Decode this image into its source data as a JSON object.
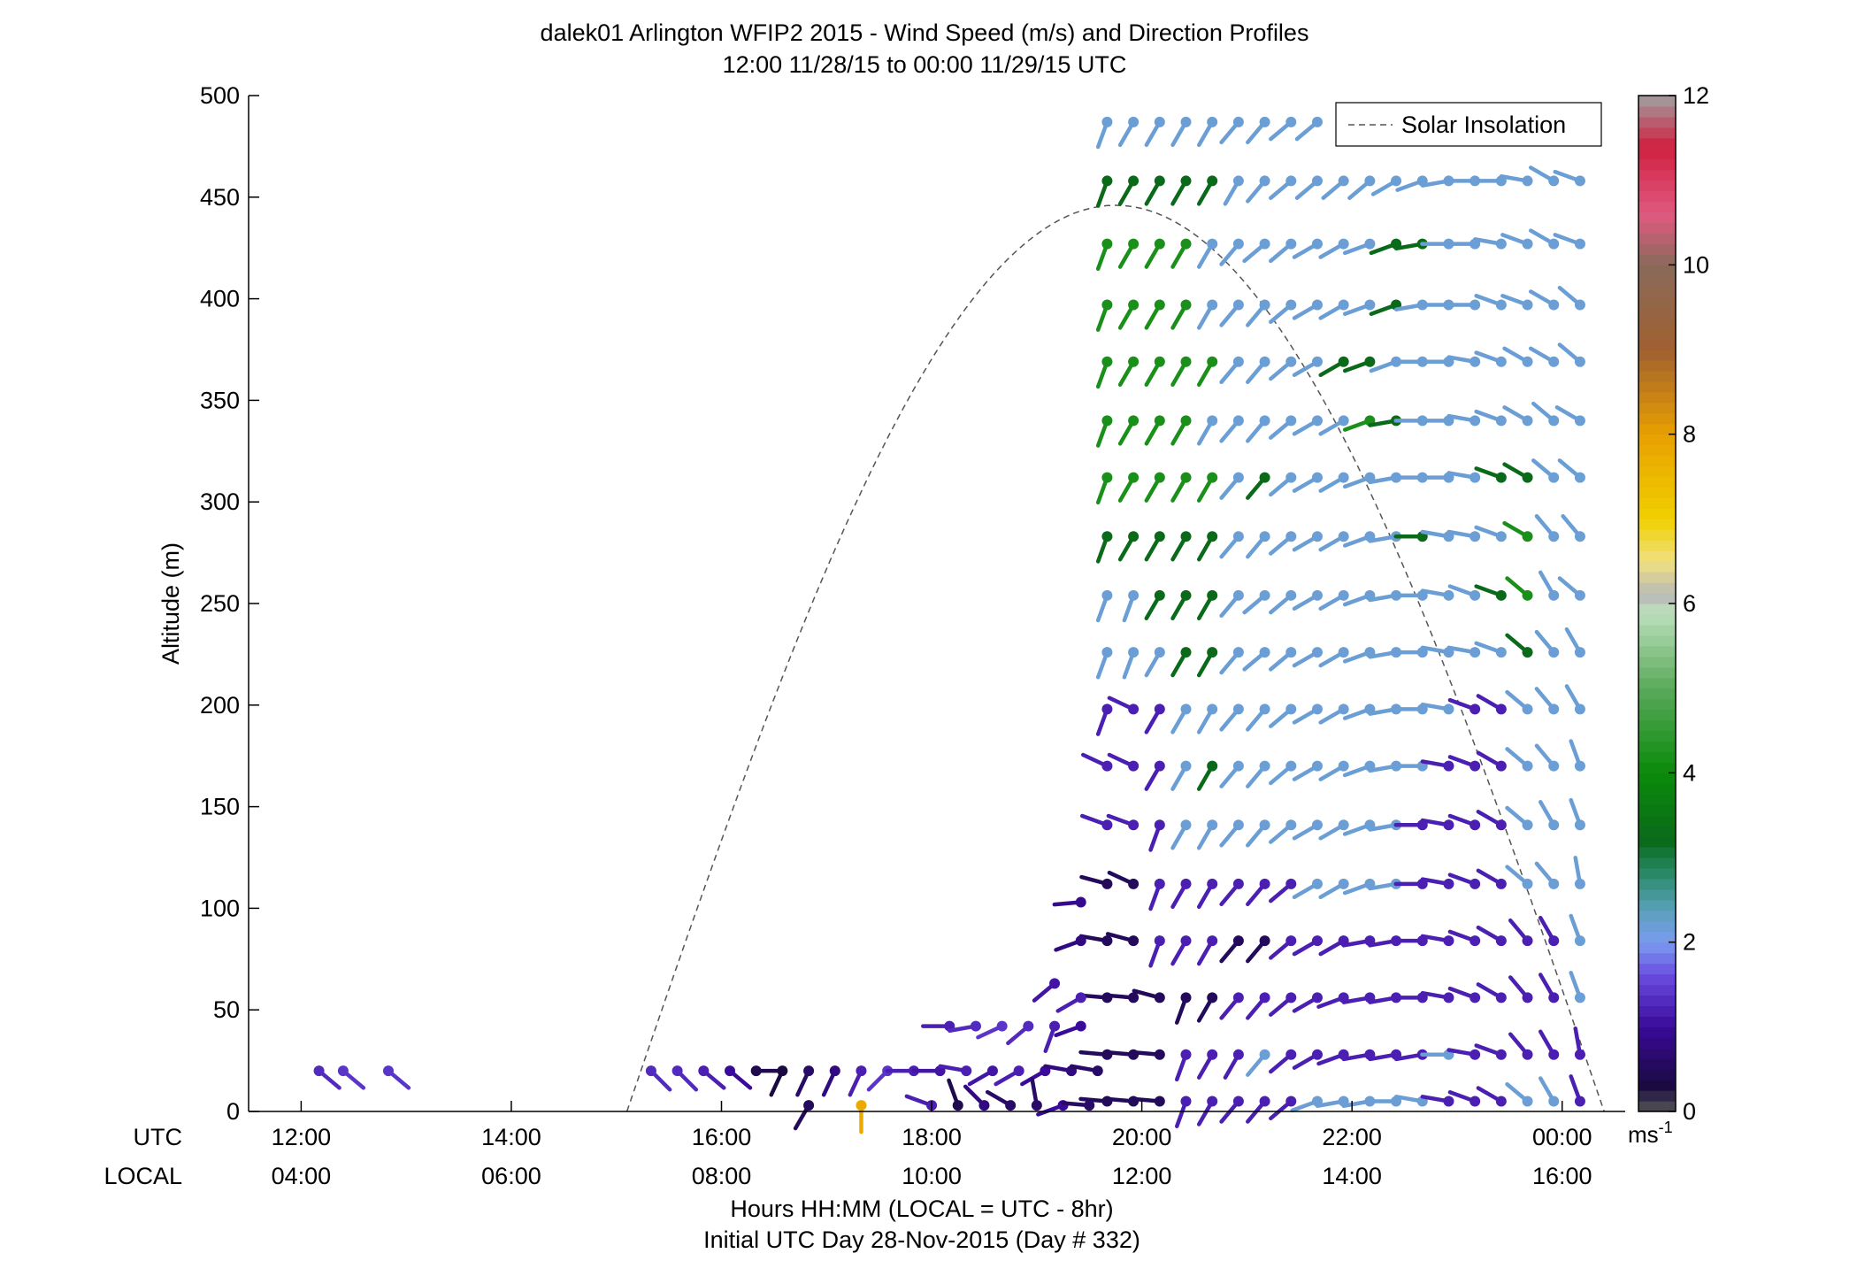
{
  "chart_data": {
    "type": "scatter",
    "title": "dalek01 Arlington WFIP2 2015 - Wind Speed (m/s) and Direction Profiles",
    "subtitle": "12:00 11/28/15 to 00:00 11/29/15  UTC",
    "ylabel": "Altitude (m)",
    "xlabel": "Hours HH:MM  (LOCAL = UTC - 8hr)",
    "xlabel2": "Initial UTC Day 28-Nov-2015 (Day # 332)",
    "xlim_hours": [
      11.5,
      24.6
    ],
    "ylim": [
      0,
      500
    ],
    "x_row_label_utc": "UTC",
    "x_row_label_local": "LOCAL",
    "x_ticks_hours": [
      12,
      14,
      16,
      18,
      20,
      22,
      24
    ],
    "x_tick_labels_utc": [
      "12:00",
      "14:00",
      "16:00",
      "18:00",
      "20:00",
      "22:00",
      "00:00"
    ],
    "x_tick_labels_local": [
      "04:00",
      "06:00",
      "08:00",
      "10:00",
      "12:00",
      "14:00",
      "16:00"
    ],
    "y_ticks": [
      0,
      50,
      100,
      150,
      200,
      250,
      300,
      350,
      400,
      450,
      500
    ],
    "grid": false,
    "legend": {
      "position": "top-right",
      "entries": [
        "Solar Insolation"
      ]
    },
    "solar_insolation": {
      "sunrise_hour": 15.1,
      "sunset_hour": 24.4,
      "peak_hour": 19.75,
      "peak_altitude": 446
    },
    "colorbar": {
      "min": 0,
      "max": 12,
      "ticks": [
        0,
        2,
        4,
        6,
        8,
        10,
        12
      ],
      "unit_base": "ms",
      "unit_exp": "-1"
    },
    "colormap": [
      [
        0,
        "#555555"
      ],
      [
        0.3,
        "#1a0a40"
      ],
      [
        1.0,
        "#3a0a9a"
      ],
      [
        1.6,
        "#6a4ae0"
      ],
      [
        2.0,
        "#7a9cf0"
      ],
      [
        2.4,
        "#5aa0b8"
      ],
      [
        2.8,
        "#2a8a6a"
      ],
      [
        3.2,
        "#0a6a1a"
      ],
      [
        4.0,
        "#0a8a0a"
      ],
      [
        5.0,
        "#5aaa5a"
      ],
      [
        5.9,
        "#bde0bd"
      ],
      [
        6.1,
        "#b8b8b8"
      ],
      [
        6.5,
        "#f0e080"
      ],
      [
        7.0,
        "#f0d000"
      ],
      [
        8.0,
        "#e8a000"
      ],
      [
        9.0,
        "#a06030"
      ],
      [
        10.0,
        "#8a6a5a"
      ],
      [
        10.6,
        "#e05a80"
      ],
      [
        11.4,
        "#d02040"
      ],
      [
        12.0,
        "#a0a0a0"
      ]
    ],
    "series": [
      {
        "start_hour": 19.67,
        "step_hours": 0.25,
        "heights": [
          487,
          458,
          427,
          397,
          369,
          340,
          312,
          283,
          254,
          226,
          198,
          170,
          141,
          112,
          84,
          56,
          28,
          5
        ],
        "speed_grid": [
          "2222222221111111111",
          "3333322222222222222",
          "4444222222233222222",
          "4444222222232222222",
          "4444422223322222222",
          "4444222222432222222",
          "4444423222222223322",
          "3333322222223222422",
          "2233322222222223422",
          "2223322222222222322",
          "1112222222222211222",
          "1112322222222111222",
          "1112222222221111222",
          "0011111122221111222",
          "0011100111111111112",
          "0000011111111111112",
          "0001112111111211111",
          "0001111122222111221"
        ],
        "dir_grid": [
          "ABBBBCCDD..........",
          "ABBBBBCDDDDEFGHHIKJ",
          "ABBBBCDDEEFFGHHIJKJ",
          "ABBBBCCDEEFFGHHJJKL",
          "ABBBBCCDEEFFHHIJKKL",
          "ABBBBCCDEEFGHHIJKLK",
          "ABBBBCCDEEFGHHIJKLL",
          "ABBBBCCDEEFGHIIJKMM",
          "AABBBCDDEEFGHIJJLNL",
          "AABBBCDDEEFGHIIJLMN",
          "A9BBBCCDEEFGHIJKLMN",
          "99BBBCCDEEFGHIJKLMO",
          "88ABBCCDEEFGHIJKLNO",
          "79ABBCCDEEFGHIJKLMP",
          "67ABBCCDEEGGHIJKMNO",
          "557ABCCDEFGGHIJKMNO",
          "555ABBCDEFGGGHIJMNP",
          "555ABCCDFGGHIIJKLNO"
        ]
      },
      {
        "label_note": "low level 20 m and 5 m samples before 19:40",
        "points": [
          {
            "x": 12.17,
            "y": 20,
            "speed": 1.3,
            "dir": 130
          },
          {
            "x": 12.4,
            "y": 20,
            "speed": 1.4,
            "dir": 130
          },
          {
            "x": 12.83,
            "y": 20,
            "speed": 1.4,
            "dir": 130
          },
          {
            "x": 15.33,
            "y": 20,
            "speed": 1.3,
            "dir": 135
          },
          {
            "x": 15.58,
            "y": 20,
            "speed": 1.3,
            "dir": 135
          },
          {
            "x": 15.83,
            "y": 20,
            "speed": 1.2,
            "dir": 130
          },
          {
            "x": 16.08,
            "y": 20,
            "speed": 1.0,
            "dir": 130
          },
          {
            "x": 16.33,
            "y": 20,
            "speed": 0.4,
            "dir": 90
          },
          {
            "x": 16.58,
            "y": 20,
            "speed": 0.3,
            "dir": 205
          },
          {
            "x": 16.83,
            "y": 20,
            "speed": 0.6,
            "dir": 205
          },
          {
            "x": 17.08,
            "y": 20,
            "speed": 0.8,
            "dir": 205
          },
          {
            "x": 17.33,
            "y": 20,
            "speed": 1.2,
            "dir": 205
          },
          {
            "x": 17.58,
            "y": 20,
            "speed": 1.4,
            "dir": 225
          },
          {
            "x": 17.83,
            "y": 20,
            "speed": 1.2,
            "dir": 270
          },
          {
            "x": 18.08,
            "y": 20,
            "speed": 1.1,
            "dir": 270
          },
          {
            "x": 18.33,
            "y": 20,
            "speed": 1.2,
            "dir": 280
          },
          {
            "x": 18.58,
            "y": 20,
            "speed": 1.1,
            "dir": 240
          },
          {
            "x": 18.83,
            "y": 20,
            "speed": 1.2,
            "dir": 240
          },
          {
            "x": 19.08,
            "y": 20,
            "speed": 1.0,
            "dir": 240
          },
          {
            "x": 19.33,
            "y": 20,
            "speed": 0.8,
            "dir": 280
          },
          {
            "x": 19.58,
            "y": 20,
            "speed": 0.6,
            "dir": 280
          },
          {
            "x": 16.83,
            "y": 3,
            "speed": 0.5,
            "dir": 210
          },
          {
            "x": 17.33,
            "y": 3,
            "speed": 7.8,
            "dir": 180
          },
          {
            "x": 18.0,
            "y": 3,
            "speed": 1.2,
            "dir": 290
          },
          {
            "x": 18.25,
            "y": 3,
            "speed": 0.4,
            "dir": 340
          },
          {
            "x": 18.5,
            "y": 3,
            "speed": 0.8,
            "dir": 315
          },
          {
            "x": 18.75,
            "y": 3,
            "speed": 0.6,
            "dir": 300
          },
          {
            "x": 19.0,
            "y": 3,
            "speed": 0.6,
            "dir": 350
          },
          {
            "x": 19.25,
            "y": 3,
            "speed": 1.0,
            "dir": 250
          },
          {
            "x": 19.5,
            "y": 3,
            "speed": 0.6,
            "dir": 275
          },
          {
            "x": 18.17,
            "y": 42,
            "speed": 1.2,
            "dir": 270
          },
          {
            "x": 18.42,
            "y": 42,
            "speed": 1.3,
            "dir": 260
          },
          {
            "x": 18.67,
            "y": 42,
            "speed": 1.4,
            "dir": 245
          },
          {
            "x": 18.92,
            "y": 42,
            "speed": 1.3,
            "dir": 230
          },
          {
            "x": 19.17,
            "y": 42,
            "speed": 1.2,
            "dir": 200
          },
          {
            "x": 19.42,
            "y": 42,
            "speed": 1.0,
            "dir": 250
          },
          {
            "x": 19.42,
            "y": 56,
            "speed": 1.2,
            "dir": 240
          },
          {
            "x": 19.42,
            "y": 84,
            "speed": 0.8,
            "dir": 250
          },
          {
            "x": 19.42,
            "y": 103,
            "speed": 0.9,
            "dir": 265
          },
          {
            "x": 19.17,
            "y": 63,
            "speed": 1.1,
            "dir": 230
          }
        ]
      }
    ]
  }
}
